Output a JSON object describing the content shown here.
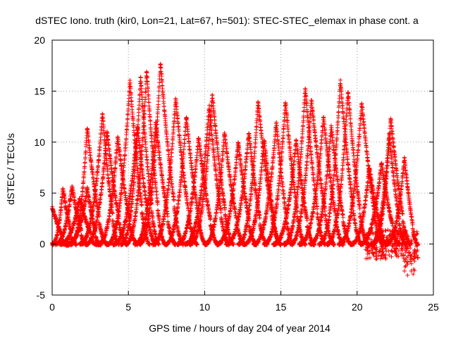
{
  "chart_data": {
    "type": "scatter",
    "title": "dSTEC Iono. truth (kir0, Lon=21, Lat=67, h=501): STEC-STEC_elemax in phase cont. a",
    "xlabel": "GPS time / hours of day 204 of year 2014",
    "ylabel": "dSTEC  / TECUs",
    "xlim": [
      0,
      25
    ],
    "ylim": [
      -5,
      20
    ],
    "xticks": [
      "0",
      "5",
      "10",
      "15",
      "20",
      "25"
    ],
    "yticks": [
      "-5",
      "0",
      "5",
      "10",
      "15",
      "20"
    ],
    "grid": true,
    "marker": "+",
    "color": "#ff0000",
    "arcs": [
      {
        "start": 0.0,
        "peak_t": 0.0,
        "peak": 3.6,
        "end": 1.1
      },
      {
        "start": -0.2,
        "peak_t": 0.7,
        "peak": 5.5,
        "end": 1.6
      },
      {
        "start": 0.2,
        "peak_t": 1.3,
        "peak": 5.7,
        "end": 2.3
      },
      {
        "start": 0.5,
        "peak_t": 1.8,
        "peak": 4.5,
        "end": 3.0
      },
      {
        "start": 1.0,
        "peak_t": 2.3,
        "peak": 5.5,
        "end": 3.2
      },
      {
        "start": 1.2,
        "peak_t": 2.3,
        "peak": 11.4,
        "end": 3.6
      },
      {
        "start": 1.8,
        "peak_t": 3.3,
        "peak": 12.8,
        "end": 4.4
      },
      {
        "start": 2.2,
        "peak_t": 3.6,
        "peak": 11.0,
        "end": 4.9
      },
      {
        "start": 3.0,
        "peak_t": 4.3,
        "peak": 10.5,
        "end": 5.6
      },
      {
        "start": 3.6,
        "peak_t": 5.1,
        "peak": 16.0,
        "end": 6.4
      },
      {
        "start": 4.0,
        "peak_t": 5.6,
        "peak": 11.5,
        "end": 6.8
      },
      {
        "start": 4.5,
        "peak_t": 5.8,
        "peak": 16.4,
        "end": 7.0
      },
      {
        "start": 4.8,
        "peak_t": 6.2,
        "peak": 17.0,
        "end": 7.4
      },
      {
        "start": 5.4,
        "peak_t": 6.8,
        "peak": 12.0,
        "end": 8.1
      },
      {
        "start": 5.7,
        "peak_t": 7.1,
        "peak": 17.8,
        "end": 8.6
      },
      {
        "start": 6.6,
        "peak_t": 8.1,
        "peak": 14.3,
        "end": 9.5
      },
      {
        "start": 7.4,
        "peak_t": 8.8,
        "peak": 12.5,
        "end": 10.1
      },
      {
        "start": 8.2,
        "peak_t": 9.6,
        "peak": 10.5,
        "end": 10.9
      },
      {
        "start": 8.7,
        "peak_t": 10.3,
        "peak": 13.5,
        "end": 11.6
      },
      {
        "start": 9.0,
        "peak_t": 10.5,
        "peak": 14.7,
        "end": 11.9
      },
      {
        "start": 10.0,
        "peak_t": 11.3,
        "peak": 11.0,
        "end": 12.6
      },
      {
        "start": 10.8,
        "peak_t": 12.2,
        "peak": 10.0,
        "end": 13.4
      },
      {
        "start": 11.4,
        "peak_t": 12.9,
        "peak": 11.0,
        "end": 14.1
      },
      {
        "start": 12.2,
        "peak_t": 13.5,
        "peak": 14.0,
        "end": 15.0
      },
      {
        "start": 12.6,
        "peak_t": 13.9,
        "peak": 10.3,
        "end": 15.0
      },
      {
        "start": 13.2,
        "peak_t": 14.7,
        "peak": 12.0,
        "end": 15.8
      },
      {
        "start": 13.9,
        "peak_t": 15.3,
        "peak": 14.0,
        "end": 16.6
      },
      {
        "start": 14.5,
        "peak_t": 16.0,
        "peak": 10.2,
        "end": 17.2
      },
      {
        "start": 15.2,
        "peak_t": 16.6,
        "peak": 15.3,
        "end": 17.9
      },
      {
        "start": 15.6,
        "peak_t": 17.0,
        "peak": 14.2,
        "end": 18.5
      },
      {
        "start": 16.2,
        "peak_t": 17.8,
        "peak": 12.5,
        "end": 19.1
      },
      {
        "start": 16.9,
        "peak_t": 18.3,
        "peak": 11.6,
        "end": 19.6
      },
      {
        "start": 17.5,
        "peak_t": 18.9,
        "peak": 16.0,
        "end": 20.3
      },
      {
        "start": 18.0,
        "peak_t": 19.4,
        "peak": 15.0,
        "end": 20.7
      },
      {
        "start": 18.8,
        "peak_t": 20.3,
        "peak": 13.9,
        "end": 21.7
      },
      {
        "start": 19.6,
        "peak_t": 20.8,
        "peak": 7.5,
        "end": 22.0
      },
      {
        "start": 20.2,
        "peak_t": 21.6,
        "peak": 8.0,
        "end": 22.8
      },
      {
        "start": 20.9,
        "peak_t": 22.1,
        "peak": 10.8,
        "end": 23.2
      },
      {
        "start": 21.0,
        "peak_t": 22.2,
        "peak": 12.4,
        "end": 23.5
      },
      {
        "start": 21.9,
        "peak_t": 23.1,
        "peak": 8.5,
        "end": 24.0
      }
    ]
  }
}
